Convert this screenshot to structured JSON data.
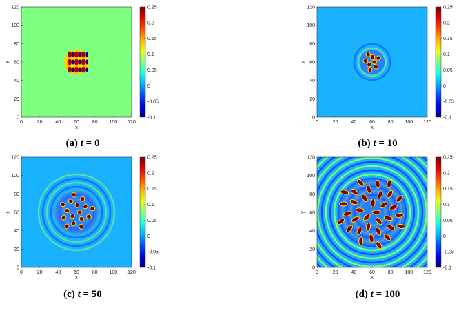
{
  "panels": [
    {
      "xlim": [
        0,
        120
      ],
      "ylim": [
        0,
        120
      ],
      "xticks": [
        0,
        20,
        40,
        60,
        80,
        100,
        120
      ],
      "yticks": [
        0,
        20,
        40,
        60,
        80,
        100,
        120
      ],
      "xlabel": "x",
      "ylabel": "y",
      "clim": [
        -0.1,
        0.25
      ],
      "cticks": [
        -0.1,
        -0.05,
        0,
        0.05,
        0.1,
        0.15,
        0.2,
        0.25
      ],
      "caption": {
        "label": "(a)",
        "var": "t",
        "eq": "= 0"
      }
    },
    {
      "xlim": [
        0,
        120
      ],
      "ylim": [
        0,
        120
      ],
      "xticks": [
        0,
        20,
        40,
        60,
        80,
        100,
        120
      ],
      "yticks": [
        0,
        20,
        40,
        60,
        80,
        100,
        120
      ],
      "xlabel": "x",
      "ylabel": "y",
      "clim": [
        -0.1,
        0.25
      ],
      "cticks": [
        -0.1,
        -0.05,
        0,
        0.05,
        0.1,
        0.15,
        0.2,
        0.25
      ],
      "caption": {
        "label": "(b)",
        "var": "t",
        "eq": "= 10"
      }
    },
    {
      "xlim": [
        0,
        120
      ],
      "ylim": [
        0,
        120
      ],
      "xticks": [
        0,
        20,
        40,
        60,
        80,
        100,
        120
      ],
      "yticks": [
        0,
        20,
        40,
        60,
        80,
        100,
        120
      ],
      "xlabel": "x",
      "ylabel": "y",
      "clim": [
        -0.1,
        0.25
      ],
      "cticks": [
        -0.1,
        -0.05,
        0,
        0.05,
        0.1,
        0.15,
        0.2,
        0.25
      ],
      "caption": {
        "label": "(c)",
        "var": "t",
        "eq": "= 50"
      }
    },
    {
      "xlim": [
        0,
        120
      ],
      "ylim": [
        0,
        120
      ],
      "xticks": [
        0,
        20,
        40,
        60,
        80,
        100,
        120
      ],
      "yticks": [
        0,
        20,
        40,
        60,
        80,
        100,
        120
      ],
      "xlabel": "x",
      "ylabel": "y",
      "clim": [
        -0.1,
        0.25
      ],
      "cticks": [
        -0.1,
        -0.05,
        0,
        0.05,
        0.1,
        0.15,
        0.2,
        0.25
      ],
      "caption": {
        "label": "(d)",
        "var": "t",
        "eq": "= 100"
      }
    }
  ]
}
